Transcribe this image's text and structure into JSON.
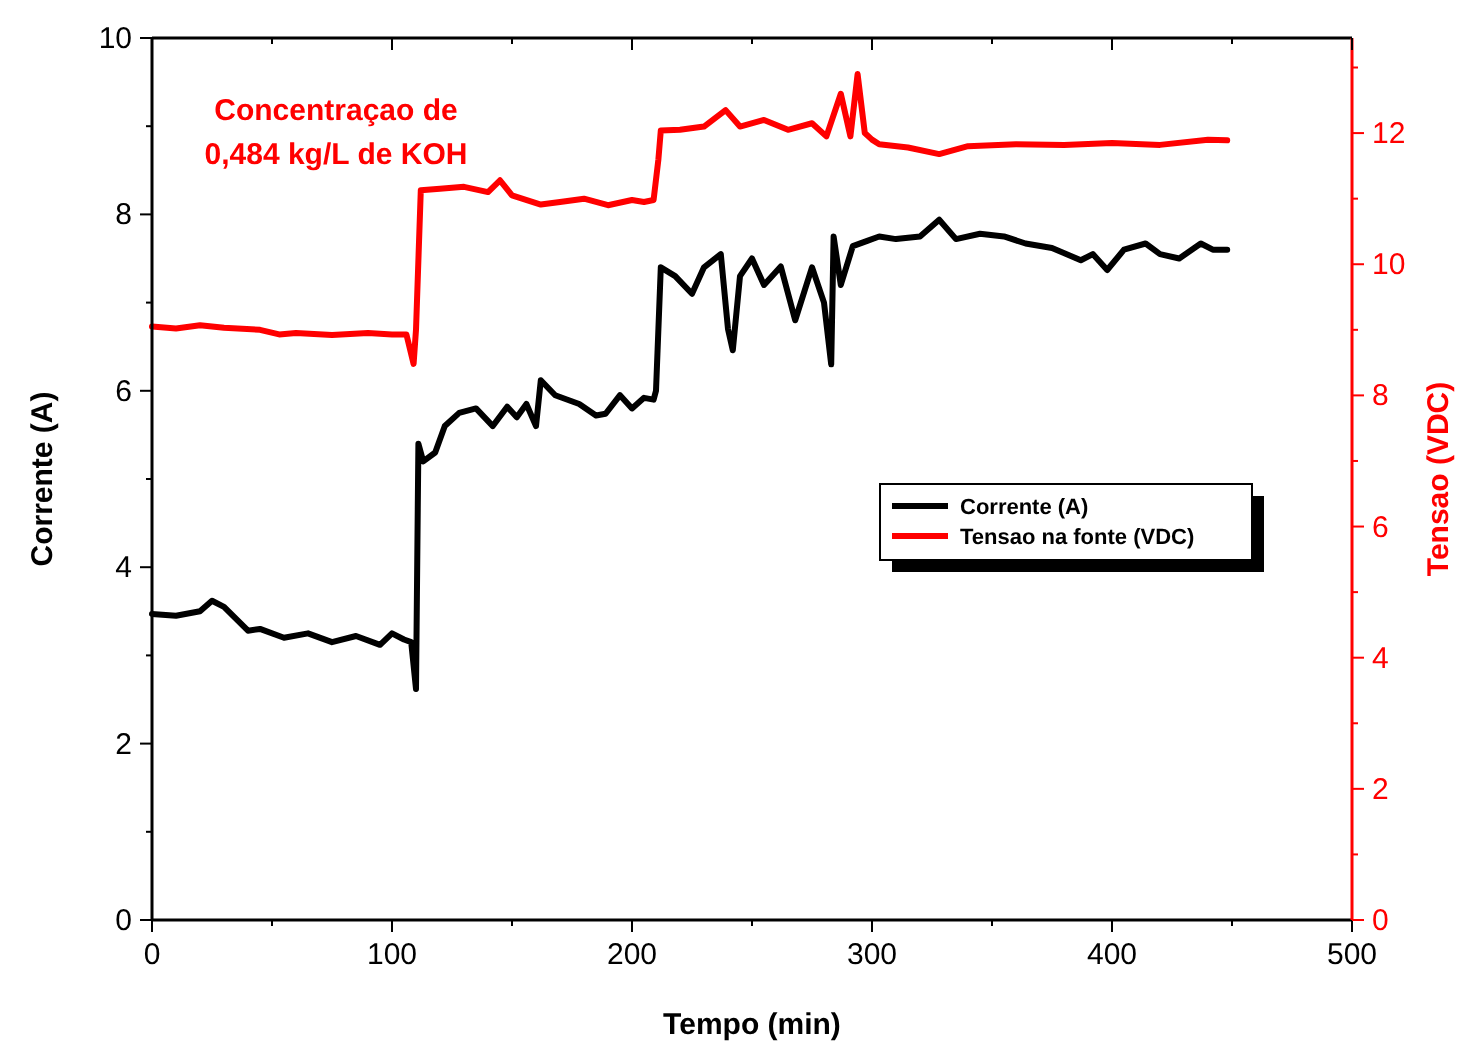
{
  "chart_data": {
    "type": "line",
    "xlabel": "Tempo (min)",
    "ylabel": "Corrente (A)",
    "y2label": "Tensao (VDC)",
    "annotations": [
      "Concentraçao de\n0,484 kg/L de KOH"
    ],
    "xlim": [
      0,
      500
    ],
    "xticks": [
      0,
      {
        "value": 50,
        "label": null
      },
      100,
      {
        "value": 150,
        "label": null
      },
      200,
      {
        "value": 250,
        "label": null
      },
      300,
      {
        "value": 350,
        "label": null
      },
      400,
      {
        "value": 450,
        "label": null
      },
      500
    ],
    "ylim": [
      0,
      10
    ],
    "yticks": [
      0,
      {
        "value": 1,
        "label": null
      },
      2,
      {
        "value": 3,
        "label": null
      },
      4,
      {
        "value": 5,
        "label": null
      },
      6,
      {
        "value": 7,
        "label": null
      },
      8,
      {
        "value": 9,
        "label": null
      },
      10
    ],
    "y2lim": [
      0,
      13.45
    ],
    "y2ticks": [
      0,
      {
        "value": 1,
        "label": null
      },
      2,
      {
        "value": 3,
        "label": null
      },
      4,
      {
        "value": 5,
        "label": null
      },
      6,
      {
        "value": 7,
        "label": null
      },
      8,
      {
        "value": 9,
        "label": null
      },
      10,
      {
        "value": 11,
        "label": null
      },
      12,
      {
        "value": 13,
        "label": null
      }
    ],
    "legend": "right",
    "grid": false,
    "marker": "none",
    "line_style": "solid",
    "series": [
      {
        "name": "Corrente (A)",
        "color": "#000000",
        "x": [
          0,
          10,
          20,
          25,
          30,
          40,
          45,
          55,
          65,
          75,
          85,
          95,
          100,
          105,
          108,
          110,
          111,
          113,
          118,
          122,
          128,
          135,
          142,
          148,
          152,
          156,
          160,
          162,
          168,
          178,
          185,
          189,
          195,
          200,
          205,
          209,
          210,
          212,
          218,
          225,
          230,
          237,
          240,
          242,
          245,
          250,
          255,
          262,
          268,
          275,
          280,
          283,
          284,
          287,
          292,
          298,
          303,
          310,
          320,
          328,
          335,
          345,
          355,
          364,
          375,
          387,
          392,
          398,
          405,
          414,
          420,
          428,
          437,
          442,
          448
        ],
        "values": [
          3.47,
          3.45,
          3.5,
          3.62,
          3.55,
          3.28,
          3.3,
          3.2,
          3.25,
          3.15,
          3.22,
          3.12,
          3.25,
          3.18,
          3.15,
          2.62,
          5.4,
          5.2,
          5.3,
          5.6,
          5.75,
          5.8,
          5.6,
          5.82,
          5.7,
          5.85,
          5.6,
          6.12,
          5.95,
          5.85,
          5.72,
          5.74,
          5.95,
          5.8,
          5.92,
          5.9,
          6.0,
          7.4,
          7.3,
          7.1,
          7.4,
          7.55,
          6.7,
          6.46,
          7.3,
          7.5,
          7.2,
          7.41,
          6.8,
          7.4,
          7.0,
          6.3,
          7.75,
          7.2,
          7.64,
          7.7,
          7.75,
          7.72,
          7.75,
          7.94,
          7.72,
          7.78,
          7.75,
          7.67,
          7.62,
          7.48,
          7.55,
          7.37,
          7.6,
          7.67,
          7.55,
          7.5,
          7.67,
          7.6,
          7.6
        ]
      },
      {
        "name": "Tensao na fonte (VDC)",
        "color": "#ff0000",
        "axis": "y2",
        "x": [
          0,
          10,
          20,
          30,
          45,
          53,
          60,
          75,
          90,
          100,
          106,
          109,
          110,
          112,
          120,
          130,
          140,
          145,
          150,
          162,
          170,
          180,
          190,
          200,
          205,
          209,
          211,
          212,
          220,
          230,
          239,
          245,
          255,
          265,
          275,
          281,
          287,
          291,
          294,
          297,
          300,
          303,
          315,
          328,
          340,
          360,
          380,
          400,
          420,
          440,
          448
        ],
        "values": [
          9.05,
          9.02,
          9.07,
          9.03,
          9.0,
          8.93,
          8.95,
          8.92,
          8.95,
          8.93,
          8.93,
          8.48,
          9.0,
          11.13,
          11.15,
          11.18,
          11.1,
          11.28,
          11.05,
          10.91,
          10.95,
          11.0,
          10.9,
          10.98,
          10.95,
          10.98,
          11.6,
          12.04,
          12.05,
          12.1,
          12.35,
          12.1,
          12.2,
          12.05,
          12.15,
          11.95,
          12.6,
          11.95,
          12.9,
          12.0,
          11.9,
          11.83,
          11.78,
          11.68,
          11.8,
          11.83,
          11.82,
          11.85,
          11.82,
          11.9,
          11.89
        ]
      }
    ]
  }
}
